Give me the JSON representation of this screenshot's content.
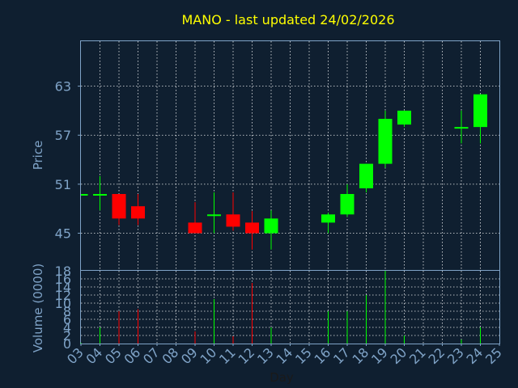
{
  "chart_data": {
    "type": "candlestick",
    "title": "MANO - last updated 24/02/2026",
    "ylabel": "Price",
    "volume_label": "Volume (0000)",
    "xlabel": "Day",
    "x_ticks": [
      "03",
      "04",
      "05",
      "06",
      "07",
      "08",
      "09",
      "10",
      "11",
      "12",
      "13",
      "14",
      "15",
      "16",
      "17",
      "18",
      "19",
      "20",
      "21",
      "22",
      "23",
      "24",
      "25"
    ],
    "price_ticks": [
      45,
      51,
      57,
      63
    ],
    "ylim": [
      40.5,
      68.5
    ],
    "volume_ticks": [
      0,
      2,
      4,
      6,
      8,
      10,
      12,
      14,
      16,
      18
    ],
    "volume_lim": [
      0,
      18
    ],
    "grid": true,
    "colors": {
      "up": "#00ff00",
      "down": "#ff0000",
      "title": "#ffff00",
      "axis": "#7fa3c7",
      "background": "#0f1f30",
      "grid": "#ffffff"
    },
    "candles": [
      {
        "day": "03",
        "open": 49.8,
        "high": 49.8,
        "low": 49.8,
        "close": 49.8,
        "volume": 0.2
      },
      {
        "day": "04",
        "open": 49.8,
        "high": 52.0,
        "low": 47.8,
        "close": 49.8,
        "volume": 4.0
      },
      {
        "day": "05",
        "open": 49.8,
        "high": 49.8,
        "low": 46.0,
        "close": 46.8,
        "volume": 8.0
      },
      {
        "day": "06",
        "open": 48.3,
        "high": 49.8,
        "low": 46.0,
        "close": 46.8,
        "volume": 8.5
      },
      {
        "day": "09",
        "open": 46.3,
        "high": 48.8,
        "low": 45.0,
        "close": 45.0,
        "volume": 3.0
      },
      {
        "day": "10",
        "open": 47.2,
        "high": 50.0,
        "low": 45.0,
        "close": 47.3,
        "volume": 11.0
      },
      {
        "day": "11",
        "open": 47.3,
        "high": 50.0,
        "low": 45.3,
        "close": 45.8,
        "volume": 1.8
      },
      {
        "day": "12",
        "open": 46.3,
        "high": 47.7,
        "low": 43.0,
        "close": 45.0,
        "volume": 15.0
      },
      {
        "day": "13",
        "open": 45.0,
        "high": 47.8,
        "low": 43.0,
        "close": 46.8,
        "volume": 4.0
      },
      {
        "day": "16",
        "open": 46.3,
        "high": 47.5,
        "low": 45.0,
        "close": 47.3,
        "volume": 8.0
      },
      {
        "day": "17",
        "open": 47.3,
        "high": 51.0,
        "low": 47.0,
        "close": 49.8,
        "volume": 8.0
      },
      {
        "day": "18",
        "open": 50.5,
        "high": 53.5,
        "low": 50.0,
        "close": 53.5,
        "volume": 12.0
      },
      {
        "day": "19",
        "open": 53.5,
        "high": 60.0,
        "low": 53.0,
        "close": 59.0,
        "volume": 18.0
      },
      {
        "day": "20",
        "open": 58.3,
        "high": 60.0,
        "low": 58.0,
        "close": 60.0,
        "volume": 2.0
      },
      {
        "day": "23",
        "open": 58.0,
        "high": 60.0,
        "low": 56.0,
        "close": 58.0,
        "volume": 1.0
      },
      {
        "day": "24",
        "open": 58.0,
        "high": 62.0,
        "low": 56.0,
        "close": 62.0,
        "volume": 4.0
      }
    ]
  }
}
